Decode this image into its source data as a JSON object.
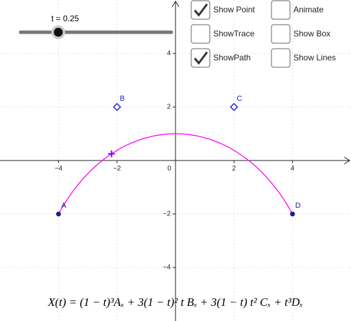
{
  "graph": {
    "xlim": [
      -6,
      6
    ],
    "ylim": [
      -6,
      6
    ],
    "xticks": [
      {
        "value": -4,
        "label": "−4"
      },
      {
        "value": -2,
        "label": "−2"
      },
      0,
      2,
      4
    ],
    "yticks": [
      4,
      2,
      {
        "value": -2,
        "label": "−2"
      },
      {
        "value": -4,
        "label": "−4"
      }
    ],
    "points": [
      {
        "label": "A",
        "x": -4,
        "y": -2
      },
      {
        "label": "B",
        "x": -2,
        "y": 2
      },
      {
        "label": "C",
        "x": 2,
        "y": 2
      },
      {
        "label": "D",
        "x": 4,
        "y": -2
      }
    ],
    "curve_color": "#ff00ff",
    "moving_point_color": "#7f00ff"
  },
  "slider": {
    "label": "t = 0.25",
    "t": 0.25
  },
  "checkboxes": [
    {
      "label": "Show Point",
      "checked": true
    },
    {
      "label": "ShowTrace",
      "checked": false
    },
    {
      "label": "ShowPath",
      "checked": true
    },
    {
      "label": "Animate",
      "checked": false
    },
    {
      "label": "Show Box",
      "checked": false
    },
    {
      "label": "Show Lines",
      "checked": false
    }
  ],
  "formula": "X(t) = (1 − t)³Aₓ + 3(1 − t)² t Bₓ + 3(1 − t) t² Cₓ + t³Dₓ"
}
